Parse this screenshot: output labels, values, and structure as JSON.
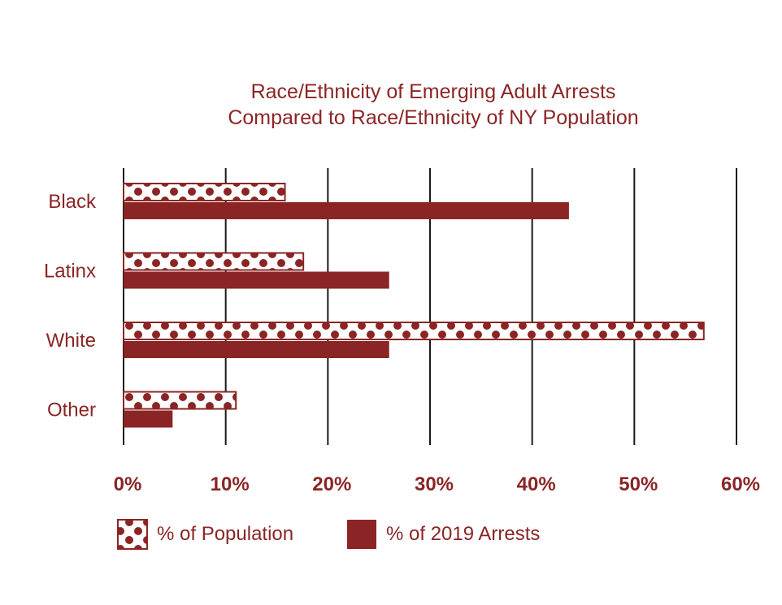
{
  "chart_data": {
    "type": "bar",
    "orientation": "horizontal",
    "title": "Race/Ethnicity of Emerging Adult Arrests",
    "subtitle": "Compared to Race/Ethnicity of NY Population",
    "categories": [
      "Black",
      "Latinx",
      "White",
      "Other"
    ],
    "series": [
      {
        "name": "% of Population",
        "values": [
          15.8,
          17.6,
          56.8,
          11.0
        ]
      },
      {
        "name": "% of 2019 Arrests",
        "values": [
          43.6,
          26.0,
          26.0,
          4.8
        ]
      }
    ],
    "xlim": [
      0,
      60
    ],
    "x_ticks": [
      "0%",
      "10%",
      "20%",
      "30%",
      "40%",
      "50%",
      "60%"
    ],
    "grid": true,
    "legend_position": "bottom",
    "colors": {
      "accent": "#8b2525",
      "grid": "#1a1a1a",
      "background": "#ffffff"
    },
    "pattern": {
      "population": "white-with-dark-red-dots",
      "arrests": "solid-dark-red"
    }
  }
}
